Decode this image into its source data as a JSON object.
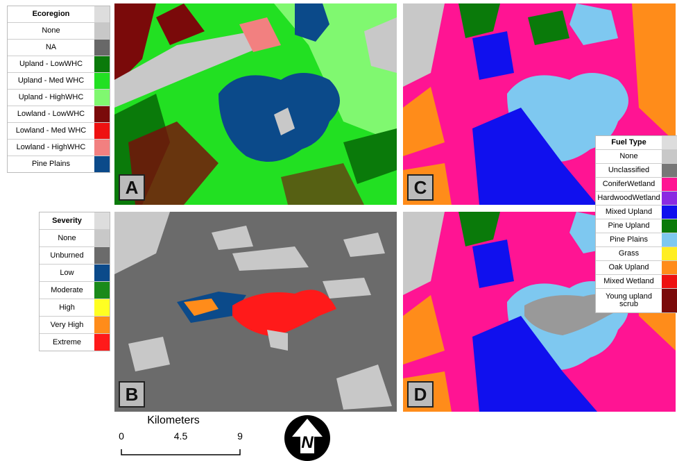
{
  "legends": {
    "ecoregion": {
      "title": "Ecoregion",
      "items": [
        {
          "label": "None",
          "color": "#c8c8c8"
        },
        {
          "label": "NA",
          "color": "#686868"
        },
        {
          "label": "Upland - LowWHC",
          "color": "#0a7a0a"
        },
        {
          "label": "Upland - Med WHC",
          "color": "#22e022"
        },
        {
          "label": "Upland - HighWHC",
          "color": "#80f870"
        },
        {
          "label": "Lowland - LowWHC",
          "color": "#7a0a0a"
        },
        {
          "label": "Lowland - Med WHC",
          "color": "#ee1111"
        },
        {
          "label": "Lowland - HighWHC",
          "color": "#f28080"
        },
        {
          "label": "Pine Plains",
          "color": "#0b4a8a"
        }
      ]
    },
    "severity": {
      "title": "Severity",
      "items": [
        {
          "label": "None",
          "color": "#c8c8c8"
        },
        {
          "label": "Unburned",
          "color": "#6b6b6b"
        },
        {
          "label": "Low",
          "color": "#0b4a8a"
        },
        {
          "label": "Moderate",
          "color": "#1a8a1a"
        },
        {
          "label": "High",
          "color": "#ffff22"
        },
        {
          "label": "Very High",
          "color": "#ff8c1a"
        },
        {
          "label": "Extreme",
          "color": "#ff1a1a"
        }
      ]
    },
    "fuel_type": {
      "title": "Fuel Type",
      "items": [
        {
          "label": "None",
          "color": "#c8c8c8"
        },
        {
          "label": "Unclassified",
          "color": "#777777"
        },
        {
          "label": "ConiferWetland",
          "color": "#ff1493"
        },
        {
          "label": "HardwoodWetland",
          "color": "#8a2be2"
        },
        {
          "label": "Mixed Upland",
          "color": "#1010ee"
        },
        {
          "label": "Pine Upland",
          "color": "#0a7a0a"
        },
        {
          "label": "Pine Plains",
          "color": "#7ec8f0"
        },
        {
          "label": "Grass",
          "color": "#ffee22"
        },
        {
          "label": "Oak Upland",
          "color": "#ff8c1a"
        },
        {
          "label": "Mixed Wetland",
          "color": "#ee1111"
        },
        {
          "label": "Young upland scrub",
          "color": "#7a0a0a"
        }
      ]
    }
  },
  "panels": [
    "A",
    "B",
    "C",
    "D"
  ],
  "scale_bar": {
    "title": "Kilometers",
    "ticks": [
      0,
      4.5,
      9
    ]
  },
  "north_arrow": "N"
}
